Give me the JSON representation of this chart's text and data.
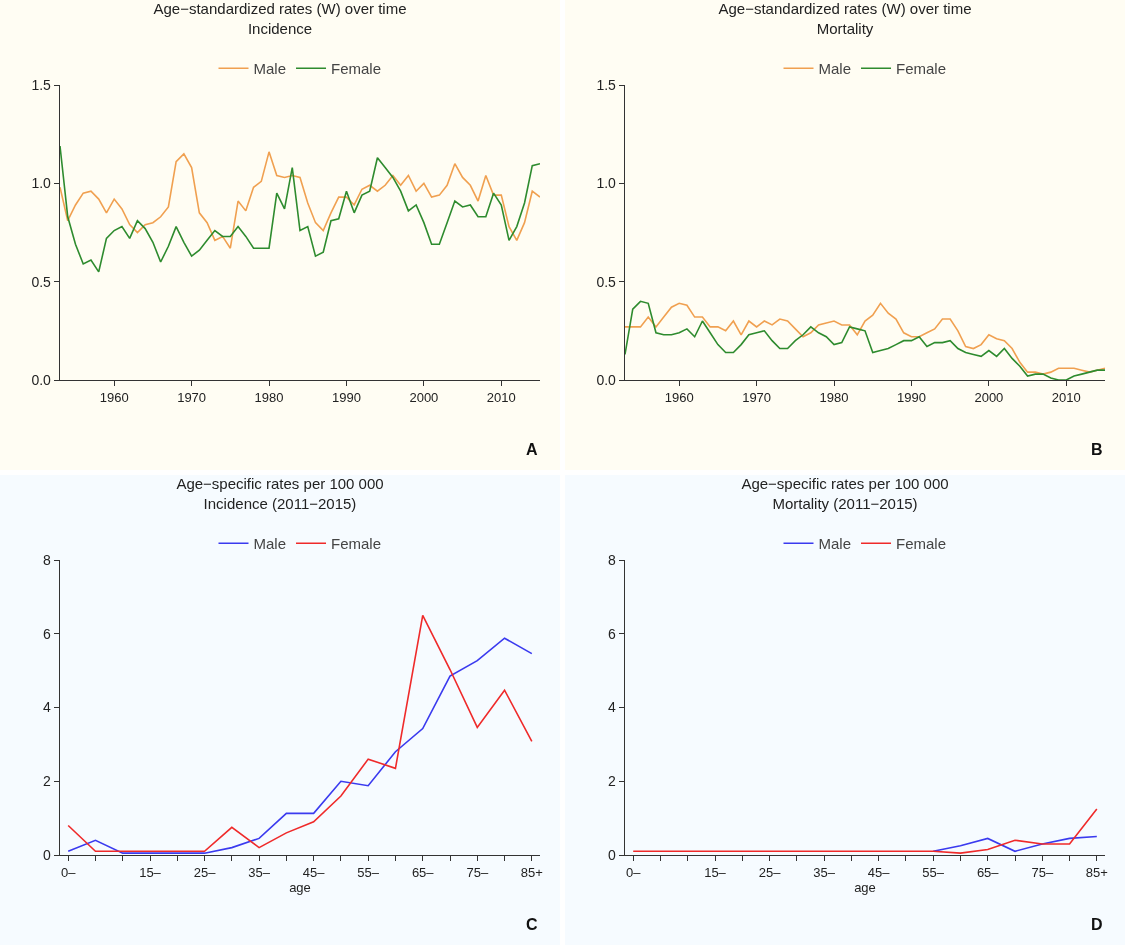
{
  "chart_data": [
    {
      "type": "line",
      "title": "Age−standardized rates (W) over time",
      "subtitle": "Incidence",
      "x": [
        1953,
        1954,
        1955,
        1956,
        1957,
        1958,
        1959,
        1960,
        1961,
        1962,
        1963,
        1964,
        1965,
        1966,
        1967,
        1968,
        1969,
        1970,
        1971,
        1972,
        1973,
        1974,
        1975,
        1976,
        1977,
        1978,
        1979,
        1980,
        1981,
        1982,
        1983,
        1984,
        1985,
        1986,
        1987,
        1988,
        1989,
        1990,
        1991,
        1992,
        1993,
        1994,
        1995,
        1996,
        1997,
        1998,
        1999,
        2000,
        2001,
        2002,
        2003,
        2004,
        2005,
        2006,
        2007,
        2008,
        2009,
        2010,
        2011,
        2012,
        2013,
        2014,
        2015
      ],
      "series": [
        {
          "name": "Male",
          "color": "#f0a050",
          "values": [
            0.98,
            0.81,
            0.89,
            0.95,
            0.96,
            0.92,
            0.85,
            0.92,
            0.87,
            0.79,
            0.75,
            0.79,
            0.8,
            0.83,
            0.88,
            1.11,
            1.15,
            1.08,
            0.85,
            0.8,
            0.71,
            0.73,
            0.67,
            0.91,
            0.86,
            0.98,
            1.01,
            1.16,
            1.04,
            1.03,
            1.04,
            1.03,
            0.9,
            0.8,
            0.76,
            0.85,
            0.93,
            0.93,
            0.89,
            0.97,
            0.99,
            0.96,
            0.99,
            1.04,
            0.99,
            1.04,
            0.96,
            1.0,
            0.93,
            0.94,
            0.99,
            1.1,
            1.03,
            0.99,
            0.91,
            1.04,
            0.94,
            0.94,
            0.78,
            0.71,
            0.8,
            0.96,
            0.93
          ]
        },
        {
          "name": "Female",
          "color": "#2e8b2e",
          "values": [
            1.19,
            0.83,
            0.69,
            0.59,
            0.61,
            0.55,
            0.72,
            0.76,
            0.78,
            0.72,
            0.81,
            0.77,
            0.7,
            0.6,
            0.68,
            0.78,
            0.7,
            0.63,
            0.66,
            0.71,
            0.76,
            0.73,
            0.73,
            0.78,
            0.73,
            0.67,
            0.67,
            0.67,
            0.95,
            0.87,
            1.08,
            0.76,
            0.78,
            0.63,
            0.65,
            0.81,
            0.82,
            0.96,
            0.85,
            0.94,
            0.96,
            1.13,
            1.08,
            1.03,
            0.96,
            0.86,
            0.89,
            0.8,
            0.69,
            0.69,
            0.8,
            0.91,
            0.88,
            0.89,
            0.83,
            0.83,
            0.95,
            0.89,
            0.71,
            0.78,
            0.9,
            1.09,
            1.1
          ]
        }
      ],
      "xlim": [
        1953,
        2015
      ],
      "xticks": [
        1960,
        1970,
        1980,
        1990,
        2000,
        2010
      ],
      "ylim": [
        0,
        1.5
      ],
      "yticks": [
        {
          "value": 0,
          "label": "0.0"
        },
        {
          "value": 0.5,
          "label": "0.5"
        },
        {
          "value": 1,
          "label": "1.0"
        },
        {
          "value": 1.5,
          "label": "1.5"
        }
      ],
      "legend": "top",
      "annotations": [
        "A"
      ]
    },
    {
      "type": "line",
      "title": "Age−standardized rates (W) over time",
      "subtitle": "Mortality",
      "x": [
        1953,
        1954,
        1955,
        1956,
        1957,
        1958,
        1959,
        1960,
        1961,
        1962,
        1963,
        1964,
        1965,
        1966,
        1967,
        1968,
        1969,
        1970,
        1971,
        1972,
        1973,
        1974,
        1975,
        1976,
        1977,
        1978,
        1979,
        1980,
        1981,
        1982,
        1983,
        1984,
        1985,
        1986,
        1987,
        1988,
        1989,
        1990,
        1991,
        1992,
        1993,
        1994,
        1995,
        1996,
        1997,
        1998,
        1999,
        2000,
        2001,
        2002,
        2003,
        2004,
        2005,
        2006,
        2007,
        2008,
        2009,
        2010,
        2011,
        2012,
        2013,
        2014,
        2015
      ],
      "series": [
        {
          "name": "Male",
          "color": "#f0a050",
          "values": [
            0.27,
            0.27,
            0.27,
            0.32,
            0.27,
            0.32,
            0.37,
            0.39,
            0.38,
            0.32,
            0.32,
            0.27,
            0.27,
            0.25,
            0.3,
            0.23,
            0.3,
            0.27,
            0.3,
            0.28,
            0.31,
            0.3,
            0.26,
            0.22,
            0.24,
            0.28,
            0.29,
            0.3,
            0.28,
            0.28,
            0.23,
            0.3,
            0.33,
            0.39,
            0.34,
            0.31,
            0.24,
            0.22,
            0.22,
            0.24,
            0.26,
            0.31,
            0.31,
            0.25,
            0.17,
            0.16,
            0.18,
            0.23,
            0.21,
            0.2,
            0.16,
            0.09,
            0.04,
            0.04,
            0.03,
            0.04,
            0.06,
            0.06,
            0.06,
            0.05,
            0.04,
            0.05,
            0.06
          ]
        },
        {
          "name": "Female",
          "color": "#2e8b2e",
          "values": [
            0.13,
            0.36,
            0.4,
            0.39,
            0.24,
            0.23,
            0.23,
            0.24,
            0.26,
            0.22,
            0.3,
            0.24,
            0.18,
            0.14,
            0.14,
            0.18,
            0.23,
            0.24,
            0.25,
            0.2,
            0.16,
            0.16,
            0.2,
            0.23,
            0.27,
            0.24,
            0.22,
            0.18,
            0.19,
            0.27,
            0.26,
            0.25,
            0.14,
            0.15,
            0.16,
            0.18,
            0.2,
            0.2,
            0.22,
            0.17,
            0.19,
            0.19,
            0.2,
            0.16,
            0.14,
            0.13,
            0.12,
            0.15,
            0.12,
            0.16,
            0.11,
            0.07,
            0.02,
            0.03,
            0.03,
            0.01,
            0.0,
            0.0,
            0.02,
            0.03,
            0.04,
            0.05,
            0.05
          ]
        }
      ],
      "xlim": [
        1953,
        2015
      ],
      "xticks": [
        1960,
        1970,
        1980,
        1990,
        2000,
        2010
      ],
      "ylim": [
        0,
        1.5
      ],
      "yticks": [
        {
          "value": 0,
          "label": "0.0"
        },
        {
          "value": 0.5,
          "label": "0.5"
        },
        {
          "value": 1,
          "label": "1.0"
        },
        {
          "value": 1.5,
          "label": "1.5"
        }
      ],
      "legend": "top",
      "annotations": [
        "B"
      ]
    },
    {
      "type": "line",
      "title": "Age−specific rates per 100 000",
      "subtitle": "Incidence (2011−2015)",
      "xlabel": "age",
      "categories": [
        "0–",
        null,
        null,
        "15–",
        null,
        "25–",
        null,
        "35–",
        null,
        "45–",
        null,
        "55–",
        null,
        "65–",
        null,
        "75–",
        null,
        "85+"
      ],
      "series": [
        {
          "name": "Male",
          "color": "#3a3aef",
          "values": [
            0.1,
            0.4,
            0.05,
            0.05,
            0.05,
            0.05,
            0.2,
            0.45,
            1.13,
            1.13,
            2.0,
            1.88,
            2.8,
            3.43,
            4.85,
            5.27,
            5.88,
            5.46
          ]
        },
        {
          "name": "Female",
          "color": "#ef2a2a",
          "values": [
            0.8,
            0.1,
            0.1,
            0.1,
            0.1,
            0.1,
            0.75,
            0.2,
            0.6,
            0.9,
            1.6,
            2.6,
            2.35,
            6.5,
            5.03,
            3.46,
            4.47,
            3.08
          ]
        }
      ],
      "ylim": [
        0,
        8
      ],
      "yticks": [
        0,
        2,
        4,
        6,
        8
      ],
      "legend": "top",
      "annotations": [
        "C"
      ]
    },
    {
      "type": "line",
      "title": "Age−specific rates per 100 000",
      "subtitle": "Mortality (2011−2015)",
      "xlabel": "age",
      "categories": [
        "0–",
        null,
        null,
        "15–",
        null,
        "25–",
        null,
        "35–",
        null,
        "45–",
        null,
        "55–",
        null,
        "65–",
        null,
        "75–",
        null,
        "85+"
      ],
      "series": [
        {
          "name": "Male",
          "color": "#3a3aef",
          "values": [
            null,
            null,
            null,
            null,
            null,
            null,
            null,
            null,
            null,
            null,
            null,
            0.1,
            0.25,
            0.45,
            0.1,
            0.3,
            0.45,
            0.5
          ]
        },
        {
          "name": "Female",
          "color": "#ef2a2a",
          "values": [
            0.1,
            0.1,
            0.1,
            0.1,
            0.1,
            0.1,
            0.1,
            0.1,
            0.1,
            0.1,
            0.1,
            0.1,
            0.05,
            0.15,
            0.4,
            0.3,
            0.3,
            1.25
          ]
        }
      ],
      "ylim": [
        0,
        8
      ],
      "yticks": [
        0,
        2,
        4,
        6,
        8
      ],
      "legend": "top",
      "annotations": [
        "D"
      ]
    }
  ]
}
